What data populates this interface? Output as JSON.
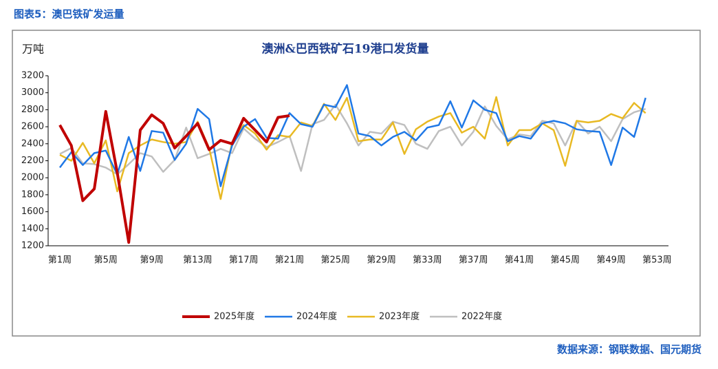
{
  "header": {
    "title": "图表5：澳巴铁矿发运量"
  },
  "source": "数据来源：钢联数据、国元期货",
  "chart_data": {
    "type": "line",
    "title": "澳洲&巴西铁矿石19港口发货量",
    "y_label": "万吨",
    "categories": [
      "第1周",
      null,
      null,
      null,
      "第5周",
      null,
      null,
      null,
      "第9周",
      null,
      null,
      null,
      "第13周",
      null,
      null,
      null,
      "第17周",
      null,
      null,
      null,
      "第21周",
      null,
      null,
      null,
      "第25周",
      null,
      null,
      null,
      "第29周",
      null,
      null,
      null,
      "第33周",
      null,
      null,
      null,
      "第37周",
      null,
      null,
      null,
      "第41周",
      null,
      null,
      null,
      "第45周",
      null,
      null,
      null,
      "第49周",
      null,
      null,
      null,
      "第53周"
    ],
    "ylim": [
      1200,
      3200
    ],
    "yticks": [
      1200,
      1400,
      1600,
      1800,
      2000,
      2200,
      2400,
      2600,
      2800,
      3000,
      3200
    ],
    "series": [
      {
        "name": "2025年度",
        "color": "#c00000",
        "width": 4,
        "values": [
          2620,
          2380,
          1730,
          1870,
          2780,
          2060,
          1240,
          2560,
          2740,
          2640,
          2350,
          2490,
          2640,
          2330,
          2440,
          2400,
          2700,
          2560,
          2420,
          2710,
          2730,
          null,
          null,
          null,
          null,
          null,
          null,
          null,
          null,
          null,
          null,
          null,
          null,
          null,
          null,
          null,
          null,
          null,
          null,
          null,
          null,
          null,
          null,
          null,
          null,
          null,
          null,
          null,
          null,
          null,
          null,
          null,
          null
        ]
      },
      {
        "name": "2024年度",
        "color": "#1f78e6",
        "width": 2.5,
        "values": [
          2120,
          2300,
          2150,
          2290,
          2320,
          2040,
          2480,
          2080,
          2550,
          2530,
          2210,
          2400,
          2810,
          2690,
          1900,
          2380,
          2600,
          2690,
          2470,
          2460,
          2760,
          2630,
          2600,
          2860,
          2830,
          3090,
          2520,
          2490,
          2380,
          2480,
          2540,
          2440,
          2590,
          2620,
          2900,
          2590,
          2910,
          2800,
          2760,
          2430,
          2490,
          2460,
          2640,
          2670,
          2640,
          2570,
          2550,
          2540,
          2150,
          2590,
          2480,
          2940,
          null
        ]
      },
      {
        "name": "2023年度",
        "color": "#e8b923",
        "width": 2.5,
        "values": [
          2270,
          2200,
          2410,
          2170,
          2440,
          1840,
          2290,
          2380,
          2450,
          2420,
          2400,
          2420,
          2660,
          2350,
          1750,
          2420,
          2620,
          2520,
          2330,
          2500,
          2480,
          2650,
          2610,
          2870,
          2680,
          2940,
          2430,
          2450,
          2450,
          2650,
          2280,
          2570,
          2660,
          2720,
          2760,
          2530,
          2600,
          2460,
          2950,
          2380,
          2560,
          2560,
          2640,
          2560,
          2140,
          2670,
          2650,
          2670,
          2750,
          2700,
          2880,
          2760,
          null
        ]
      },
      {
        "name": "2022年度",
        "color": "#bfbfbf",
        "width": 2.5,
        "values": [
          2280,
          2350,
          2170,
          2160,
          2120,
          2040,
          2160,
          2290,
          2250,
          2070,
          2210,
          2590,
          2230,
          2280,
          2340,
          2290,
          2580,
          2460,
          2360,
          2420,
          2490,
          2080,
          2630,
          2680,
          2860,
          2640,
          2380,
          2540,
          2520,
          2660,
          2620,
          2400,
          2340,
          2550,
          2600,
          2380,
          2540,
          2840,
          2610,
          2450,
          2510,
          2490,
          2670,
          2640,
          2380,
          2670,
          2520,
          2600,
          2430,
          2690,
          2770,
          2810,
          null
        ]
      }
    ]
  }
}
